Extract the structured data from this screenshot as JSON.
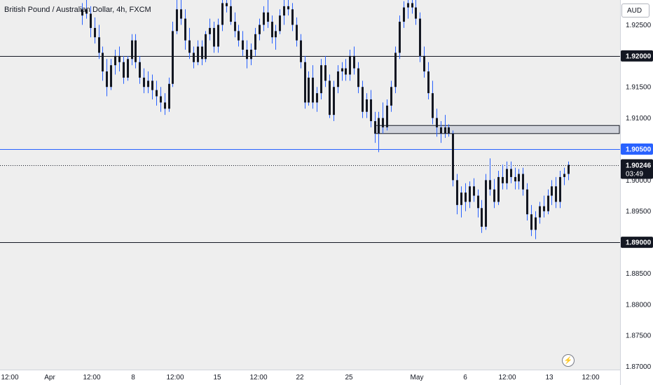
{
  "header": {
    "symbol_title": "British Pound / Australian Dollar, 4h, FXCM",
    "currency": "AUD"
  },
  "colors": {
    "background": "#eeeeee",
    "axis_background": "#ffffff",
    "candle": "#131722",
    "wick": "#2962ff",
    "horizontal_line": "#131722",
    "blue_line": "#2962ff",
    "zone_fill": "#d1d4dc",
    "axis_text": "#131722",
    "price_label_text": "#ffffff"
  },
  "icons": {
    "replay": "lightning-icon"
  },
  "chart_data": {
    "type": "candlestick",
    "title": "British Pound / Australian Dollar, 4h, FXCM",
    "y_axis": {
      "unit": "AUD",
      "ylim": [
        1.8695,
        1.929
      ],
      "tick_values": [
        1.925,
        1.915,
        1.91,
        1.9,
        1.895,
        1.885,
        1.88,
        1.875,
        1.87
      ],
      "tick_labels": [
        "1.92500",
        "1.91500",
        "1.91000",
        "1.90000",
        "1.89500",
        "1.88500",
        "1.88000",
        "1.87500",
        "1.87000"
      ]
    },
    "x_axis": {
      "tick_labels": [
        "12:00",
        "Apr",
        "12:00",
        "8",
        "12:00",
        "15",
        "12:00",
        "22",
        "25",
        "May",
        "6",
        "12:00",
        "13",
        "12:00"
      ]
    },
    "horizontal_levels": [
      {
        "price": 1.92,
        "label": "1.92000",
        "style": "solid",
        "color": "#131722"
      },
      {
        "price": 1.905,
        "label": "1.90500",
        "style": "solid",
        "color": "#2962ff"
      },
      {
        "price": 1.89,
        "label": "1.89000",
        "style": "solid",
        "color": "#131722"
      }
    ],
    "current_price": {
      "price": 1.90246,
      "label": "1.90246",
      "countdown": "03:49",
      "style": "dotted"
    },
    "zone": {
      "high": 1.9088,
      "low": 1.9075
    },
    "candles": [
      [
        1.9265,
        1.9285,
        1.925,
        1.9275
      ],
      [
        1.9275,
        1.929,
        1.926,
        1.9268
      ],
      [
        1.9268,
        1.928,
        1.923,
        1.9245
      ],
      [
        1.9245,
        1.9262,
        1.922,
        1.923
      ],
      [
        1.923,
        1.925,
        1.9195,
        1.9205
      ],
      [
        1.9205,
        1.9215,
        1.916,
        1.9175
      ],
      [
        1.9175,
        1.9195,
        1.9135,
        1.915
      ],
      [
        1.915,
        1.9195,
        1.9145,
        1.9185
      ],
      [
        1.9185,
        1.921,
        1.917,
        1.92
      ],
      [
        1.92,
        1.9215,
        1.9175,
        1.919
      ],
      [
        1.919,
        1.92,
        1.9155,
        1.9165
      ],
      [
        1.9165,
        1.92,
        1.916,
        1.9195
      ],
      [
        1.9195,
        1.9235,
        1.9185,
        1.9225
      ],
      [
        1.9225,
        1.9235,
        1.918,
        1.919
      ],
      [
        1.919,
        1.92,
        1.9155,
        1.9165
      ],
      [
        1.9165,
        1.918,
        1.914,
        1.915
      ],
      [
        1.915,
        1.9175,
        1.914,
        1.916
      ],
      [
        1.916,
        1.917,
        1.913,
        1.9145
      ],
      [
        1.9145,
        1.916,
        1.912,
        1.9135
      ],
      [
        1.9135,
        1.915,
        1.911,
        1.9125
      ],
      [
        1.9125,
        1.914,
        1.9105,
        1.9115
      ],
      [
        1.9115,
        1.9165,
        1.911,
        1.9155
      ],
      [
        1.9155,
        1.9255,
        1.915,
        1.924
      ],
      [
        1.924,
        1.93,
        1.9235,
        1.9275
      ],
      [
        1.9275,
        1.9295,
        1.925,
        1.926
      ],
      [
        1.926,
        1.9275,
        1.921,
        1.9225
      ],
      [
        1.9225,
        1.9245,
        1.9195,
        1.9205
      ],
      [
        1.9205,
        1.9215,
        1.918,
        1.919
      ],
      [
        1.919,
        1.9225,
        1.9185,
        1.9215
      ],
      [
        1.9215,
        1.9225,
        1.9185,
        1.9195
      ],
      [
        1.9195,
        1.924,
        1.919,
        1.9235
      ],
      [
        1.9235,
        1.926,
        1.9225,
        1.9245
      ],
      [
        1.9245,
        1.9255,
        1.9205,
        1.9215
      ],
      [
        1.9215,
        1.926,
        1.9205,
        1.925
      ],
      [
        1.925,
        1.9295,
        1.924,
        1.9285
      ],
      [
        1.9285,
        1.9292,
        1.927,
        1.928
      ],
      [
        1.928,
        1.929,
        1.925,
        1.9255
      ],
      [
        1.9255,
        1.927,
        1.923,
        1.924
      ],
      [
        1.924,
        1.925,
        1.9215,
        1.9225
      ],
      [
        1.9225,
        1.924,
        1.92,
        1.921
      ],
      [
        1.921,
        1.9225,
        1.918,
        1.9195
      ],
      [
        1.9195,
        1.922,
        1.9185,
        1.921
      ],
      [
        1.921,
        1.9245,
        1.92,
        1.9235
      ],
      [
        1.9235,
        1.926,
        1.9225,
        1.925
      ],
      [
        1.925,
        1.928,
        1.924,
        1.927
      ],
      [
        1.927,
        1.929,
        1.9245,
        1.9255
      ],
      [
        1.9255,
        1.9265,
        1.922,
        1.923
      ],
      [
        1.923,
        1.925,
        1.921,
        1.924
      ],
      [
        1.924,
        1.9275,
        1.9235,
        1.9265
      ],
      [
        1.9265,
        1.929,
        1.925,
        1.928
      ],
      [
        1.928,
        1.9293,
        1.9265,
        1.9275
      ],
      [
        1.9275,
        1.9285,
        1.924,
        1.925
      ],
      [
        1.925,
        1.9262,
        1.9215,
        1.9225
      ],
      [
        1.9225,
        1.9235,
        1.918,
        1.919
      ],
      [
        1.919,
        1.92,
        1.9115,
        1.9125
      ],
      [
        1.9125,
        1.9175,
        1.912,
        1.9165
      ],
      [
        1.9165,
        1.9185,
        1.9115,
        1.9125
      ],
      [
        1.9125,
        1.915,
        1.911,
        1.914
      ],
      [
        1.914,
        1.9195,
        1.913,
        1.9185
      ],
      [
        1.9185,
        1.92,
        1.915,
        1.916
      ],
      [
        1.916,
        1.917,
        1.91,
        1.9105
      ],
      [
        1.9105,
        1.916,
        1.9095,
        1.915
      ],
      [
        1.915,
        1.9185,
        1.914,
        1.9175
      ],
      [
        1.9175,
        1.919,
        1.916,
        1.918
      ],
      [
        1.918,
        1.9195,
        1.916,
        1.917
      ],
      [
        1.917,
        1.921,
        1.916,
        1.92
      ],
      [
        1.92,
        1.9215,
        1.917,
        1.918
      ],
      [
        1.918,
        1.919,
        1.914,
        1.915
      ],
      [
        1.915,
        1.916,
        1.91,
        1.911
      ],
      [
        1.911,
        1.914,
        1.91,
        1.913
      ],
      [
        1.913,
        1.9145,
        1.9085,
        1.9095
      ],
      [
        1.9095,
        1.911,
        1.906,
        1.9075
      ],
      [
        1.9075,
        1.911,
        1.9045,
        1.91
      ],
      [
        1.91,
        1.9125,
        1.9075,
        1.9085
      ],
      [
        1.9085,
        1.913,
        1.908,
        1.912
      ],
      [
        1.912,
        1.916,
        1.911,
        1.915
      ],
      [
        1.915,
        1.9215,
        1.914,
        1.9205
      ],
      [
        1.9205,
        1.9265,
        1.9195,
        1.9255
      ],
      [
        1.9255,
        1.9288,
        1.9245,
        1.9278
      ],
      [
        1.9278,
        1.9292,
        1.926,
        1.9285
      ],
      [
        1.9285,
        1.9295,
        1.9268,
        1.9278
      ],
      [
        1.9278,
        1.929,
        1.925,
        1.926
      ],
      [
        1.926,
        1.927,
        1.919,
        1.92
      ],
      [
        1.92,
        1.9215,
        1.9165,
        1.9175
      ],
      [
        1.9175,
        1.919,
        1.913,
        1.914
      ],
      [
        1.914,
        1.916,
        1.909,
        1.91
      ],
      [
        1.91,
        1.9115,
        1.907,
        1.9085
      ],
      [
        1.9085,
        1.9095,
        1.906,
        1.9075
      ],
      [
        1.9075,
        1.9105,
        1.9068,
        1.9085
      ],
      [
        1.9085,
        1.909,
        1.907,
        1.9075
      ],
      [
        1.9075,
        1.908,
        1.899,
        1.9
      ],
      [
        1.9,
        1.901,
        1.8945,
        1.896
      ],
      [
        1.896,
        1.899,
        1.894,
        1.898
      ],
      [
        1.898,
        1.8995,
        1.895,
        1.8965
      ],
      [
        1.8965,
        1.8998,
        1.8955,
        1.899
      ],
      [
        1.899,
        1.9003,
        1.8965,
        1.8975
      ],
      [
        1.8975,
        1.8985,
        1.894,
        1.8955
      ],
      [
        1.8955,
        1.8968,
        1.8915,
        1.8925
      ],
      [
        1.8925,
        1.901,
        1.892,
        1.9
      ],
      [
        1.9,
        1.9035,
        1.8975,
        1.8985
      ],
      [
        1.8985,
        1.9002,
        1.8955,
        1.8965
      ],
      [
        1.8965,
        1.9015,
        1.896,
        1.9005
      ],
      [
        1.9005,
        1.9025,
        1.8985,
        1.8995
      ],
      [
        1.8995,
        1.903,
        1.8985,
        1.9018
      ],
      [
        1.9018,
        1.903,
        1.8995,
        1.9005
      ],
      [
        1.9005,
        1.902,
        1.8985,
        1.8998
      ],
      [
        1.8998,
        1.9018,
        1.8985,
        1.901
      ],
      [
        1.901,
        1.902,
        1.8975,
        1.8985
      ],
      [
        1.8985,
        1.8995,
        1.8935,
        1.8945
      ],
      [
        1.8945,
        1.896,
        1.891,
        1.892
      ],
      [
        1.892,
        1.895,
        1.8905,
        1.894
      ],
      [
        1.894,
        1.8965,
        1.893,
        1.8958
      ],
      [
        1.8958,
        1.8975,
        1.894,
        1.895
      ],
      [
        1.895,
        1.8985,
        1.8945,
        1.8975
      ],
      [
        1.8975,
        1.9,
        1.896,
        1.899
      ],
      [
        1.899,
        1.9005,
        1.8955,
        1.8965
      ],
      [
        1.8965,
        1.9015,
        1.8955,
        1.9005
      ],
      [
        1.9005,
        1.902,
        1.8992,
        1.901
      ],
      [
        1.901,
        1.903,
        1.9,
        1.90246
      ]
    ]
  }
}
